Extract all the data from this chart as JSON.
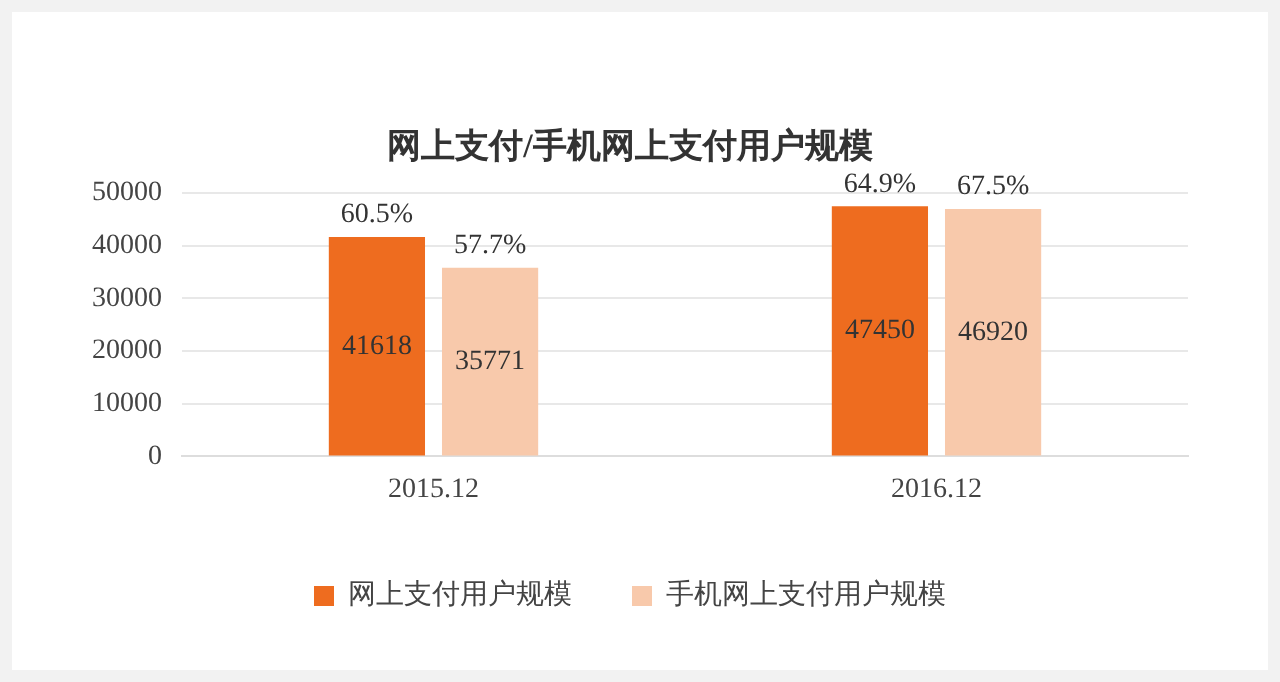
{
  "chart_data": {
    "type": "bar",
    "title": "网上支付/手机网上支付用户规模",
    "categories": [
      "2015.12",
      "2016.12"
    ],
    "series": [
      {
        "name": "网上支付用户规模",
        "color": "#ee6c1f",
        "values": [
          41618,
          47450
        ]
      },
      {
        "name": "手机网上支付用户规模",
        "color": "#f8c9ab",
        "values": [
          35771,
          46920
        ]
      }
    ],
    "ylim": [
      0,
      50000
    ],
    "yticks": [
      0,
      10000,
      20000,
      30000,
      40000,
      50000
    ],
    "grid": "y",
    "legend": "bottom",
    "data_labels": true,
    "annotations": [
      {
        "text": "60.5%",
        "x": "2015.12",
        "y": 41618
      },
      {
        "text": "57.7%",
        "x": "2015.12",
        "y": 35771
      },
      {
        "text": "64.9%",
        "x": "2016.12",
        "y": 47450
      },
      {
        "text": "67.5%",
        "x": "2016.12",
        "y": 46920
      }
    ]
  }
}
